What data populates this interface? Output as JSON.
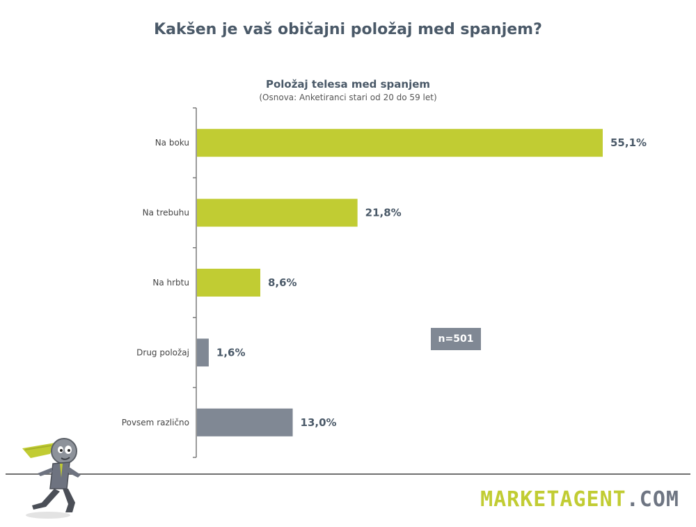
{
  "page": {
    "title": "Kakšen je vaš običajni položaj med spanjem?"
  },
  "chart_data": {
    "type": "bar",
    "orientation": "horizontal",
    "title": "Položaj telesa med spanjem",
    "subtitle": "(Osnova: Anketiranci stari od 20 do 59 let)",
    "categories": [
      "Na boku",
      "Na trebuhu",
      "Na hrbtu",
      "Drug položaj",
      "Povsem različno"
    ],
    "values": [
      55.1,
      21.8,
      8.6,
      1.6,
      13.0
    ],
    "value_labels": [
      "55,1%",
      "21,8%",
      "8,6%",
      "1,6%",
      "13,0%"
    ],
    "bar_colors": [
      "#c1cc33",
      "#c1cc33",
      "#c1cc33",
      "#808894",
      "#808894"
    ],
    "xlim": [
      0,
      55.1
    ],
    "grid": false,
    "legend": "none"
  },
  "badge": {
    "text": "n=501"
  },
  "logo": {
    "brand": "MARKETAGENT",
    "tld": ".COM"
  },
  "colors": {
    "accent": "#c1cc33",
    "gray": "#808894",
    "title": "#4a5968"
  }
}
